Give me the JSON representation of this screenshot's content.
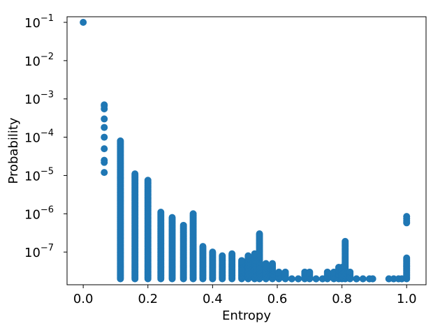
{
  "chart_data": {
    "type": "scatter",
    "title": "",
    "xlabel": "Entropy",
    "ylabel": "Probability",
    "xlim": [
      -0.05,
      1.06
    ],
    "ylim": [
      1.4e-08,
      0.14
    ],
    "yscale": "log",
    "grid": false,
    "color": "#1f77b4",
    "x_ticks": [
      {
        "value": 0.0,
        "label": "0.0"
      },
      {
        "value": 0.2,
        "label": "0.2"
      },
      {
        "value": 0.4,
        "label": "0.4"
      },
      {
        "value": 0.6,
        "label": "0.6"
      },
      {
        "value": 0.8,
        "label": "0.8"
      },
      {
        "value": 1.0,
        "label": "1.0"
      }
    ],
    "y_ticks": [
      {
        "value": 1e-07,
        "base": "10",
        "exp": "−7"
      },
      {
        "value": 1e-06,
        "base": "10",
        "exp": "−6"
      },
      {
        "value": 1e-05,
        "base": "10",
        "exp": "−5"
      },
      {
        "value": 0.0001,
        "base": "10",
        "exp": "−4"
      },
      {
        "value": 0.001,
        "base": "10",
        "exp": "−3"
      },
      {
        "value": 0.01,
        "base": "10",
        "exp": "−2"
      },
      {
        "value": 0.1,
        "base": "10",
        "exp": "−1"
      }
    ],
    "series": [
      {
        "x": [
          0.0
        ],
        "y": [
          0.1
        ]
      },
      {
        "x": [
          0.065,
          0.065,
          0.065,
          0.065,
          0.065,
          0.065,
          0.065,
          0.065,
          0.065,
          0.065
        ],
        "y": [
          0.0007,
          0.00055,
          0.0003,
          0.00018,
          0.0001,
          5e-05,
          2.5e-05,
          2.2e-05,
          1.2e-05,
          0.00066
        ]
      },
      {
        "columns": [
          {
            "x": 0.115,
            "top": 8e-05,
            "bottom": 2e-08
          },
          {
            "x": 0.16,
            "top": 1.1e-05,
            "bottom": 2e-08
          },
          {
            "x": 0.2,
            "top": 7.5e-06,
            "bottom": 2e-08
          },
          {
            "x": 0.24,
            "top": 1.1e-06,
            "bottom": 2e-08
          },
          {
            "x": 0.275,
            "top": 8e-07,
            "bottom": 2e-08
          },
          {
            "x": 0.31,
            "top": 5e-07,
            "bottom": 2e-08
          },
          {
            "x": 0.34,
            "top": 1e-06,
            "bottom": 2e-08
          },
          {
            "x": 0.37,
            "top": 1.4e-07,
            "bottom": 2e-08
          },
          {
            "x": 0.4,
            "top": 1e-07,
            "bottom": 2e-08
          },
          {
            "x": 0.43,
            "top": 8e-08,
            "bottom": 2e-08
          },
          {
            "x": 0.46,
            "top": 9e-08,
            "bottom": 2e-08
          },
          {
            "x": 0.49,
            "top": 6e-08,
            "bottom": 2e-08
          },
          {
            "x": 0.51,
            "top": 8e-08,
            "bottom": 2e-08
          },
          {
            "x": 0.53,
            "top": 9e-08,
            "bottom": 2e-08
          },
          {
            "x": 0.545,
            "top": 3e-07,
            "bottom": 2e-08
          },
          {
            "x": 0.565,
            "top": 5e-08,
            "bottom": 2e-08
          },
          {
            "x": 0.585,
            "top": 5e-08,
            "bottom": 2e-08
          },
          {
            "x": 0.605,
            "top": 3e-08,
            "bottom": 2e-08
          },
          {
            "x": 0.625,
            "top": 3e-08,
            "bottom": 2e-08
          },
          {
            "x": 0.645,
            "top": 2e-08,
            "bottom": 2e-08
          },
          {
            "x": 0.665,
            "top": 2e-08,
            "bottom": 2e-08
          },
          {
            "x": 0.685,
            "top": 3e-08,
            "bottom": 2e-08
          },
          {
            "x": 0.7,
            "top": 3e-08,
            "bottom": 2e-08
          },
          {
            "x": 0.72,
            "top": 2e-08,
            "bottom": 2e-08
          },
          {
            "x": 0.74,
            "top": 2e-08,
            "bottom": 2e-08
          },
          {
            "x": 0.755,
            "top": 3e-08,
            "bottom": 2e-08
          },
          {
            "x": 0.775,
            "top": 3e-08,
            "bottom": 2e-08
          },
          {
            "x": 0.79,
            "top": 4e-08,
            "bottom": 2e-08
          },
          {
            "x": 0.8,
            "top": 4e-08,
            "bottom": 2e-08
          },
          {
            "x": 0.81,
            "top": 1.9e-07,
            "bottom": 2e-08
          },
          {
            "x": 0.825,
            "top": 3e-08,
            "bottom": 2e-08
          },
          {
            "x": 0.845,
            "top": 2e-08,
            "bottom": 2e-08
          },
          {
            "x": 0.865,
            "top": 2e-08,
            "bottom": 2e-08
          },
          {
            "x": 0.885,
            "top": 2e-08,
            "bottom": 2e-08
          },
          {
            "x": 0.895,
            "top": 2e-08,
            "bottom": 2e-08
          },
          {
            "x": 0.945,
            "top": 2e-08,
            "bottom": 2e-08
          },
          {
            "x": 0.96,
            "top": 2e-08,
            "bottom": 2e-08
          },
          {
            "x": 0.975,
            "top": 2e-08,
            "bottom": 2e-08
          },
          {
            "x": 0.985,
            "top": 2e-08,
            "bottom": 2e-08
          },
          {
            "x": 1.0,
            "top": 7e-08,
            "bottom": 2e-08
          }
        ],
        "extra_points": [
          {
            "x": 1.0,
            "y": 8.5e-07
          },
          {
            "x": 1.0,
            "y": 7.5e-07
          },
          {
            "x": 1.0,
            "y": 6.5e-07
          },
          {
            "x": 1.0,
            "y": 5.8e-07
          }
        ]
      }
    ]
  }
}
